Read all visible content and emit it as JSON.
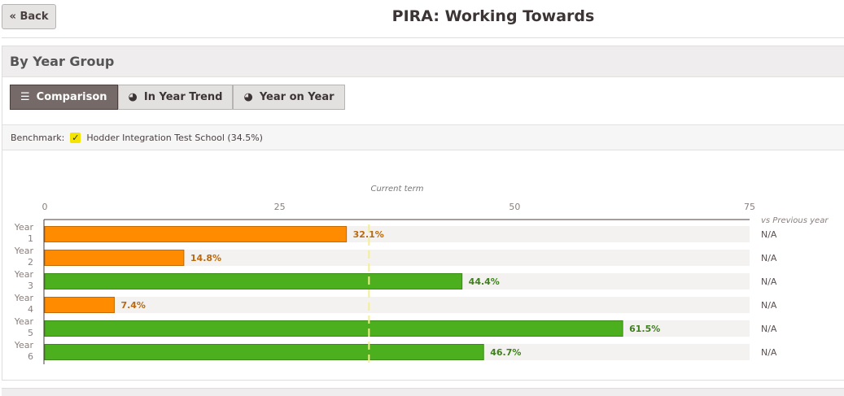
{
  "header": {
    "back_label": "« Back",
    "title": "PIRA: Working Towards"
  },
  "section": {
    "title": "By Year Group"
  },
  "tabs": [
    {
      "label": "Comparison",
      "icon": "bar-chart-icon",
      "active": true
    },
    {
      "label": "In Year Trend",
      "icon": "dashboard-icon",
      "active": false
    },
    {
      "label": "Year on Year",
      "icon": "dashboard-icon",
      "active": false
    }
  ],
  "benchmark": {
    "label": "Benchmark:",
    "checked": true,
    "name": "Hodder Integration Test School (34.5%)"
  },
  "colors": {
    "orange": "#ff8c00",
    "green": "#4caf1e",
    "benchmark": "#f5ef8a"
  },
  "chart_data": {
    "type": "bar",
    "orientation": "horizontal",
    "title": "Current term",
    "categories": [
      [
        "Year",
        "1"
      ],
      [
        "Year",
        "2"
      ],
      [
        "Year",
        "3"
      ],
      [
        "Year",
        "4"
      ],
      [
        "Year",
        "5"
      ],
      [
        "Year",
        "6"
      ]
    ],
    "values": [
      32.1,
      14.8,
      44.4,
      7.4,
      61.5,
      46.7
    ],
    "labels": [
      "32.1%",
      "14.8%",
      "44.4%",
      "7.4%",
      "61.5%",
      "46.7%"
    ],
    "status": [
      "below",
      "below",
      "above",
      "below",
      "above",
      "above"
    ],
    "xlim": [
      0,
      75
    ],
    "xticks": [
      0,
      25,
      50,
      75
    ],
    "benchmark_value": 34.5,
    "side_header": "vs Previous year",
    "side_values": [
      "N/A",
      "N/A",
      "N/A",
      "N/A",
      "N/A",
      "N/A"
    ]
  }
}
